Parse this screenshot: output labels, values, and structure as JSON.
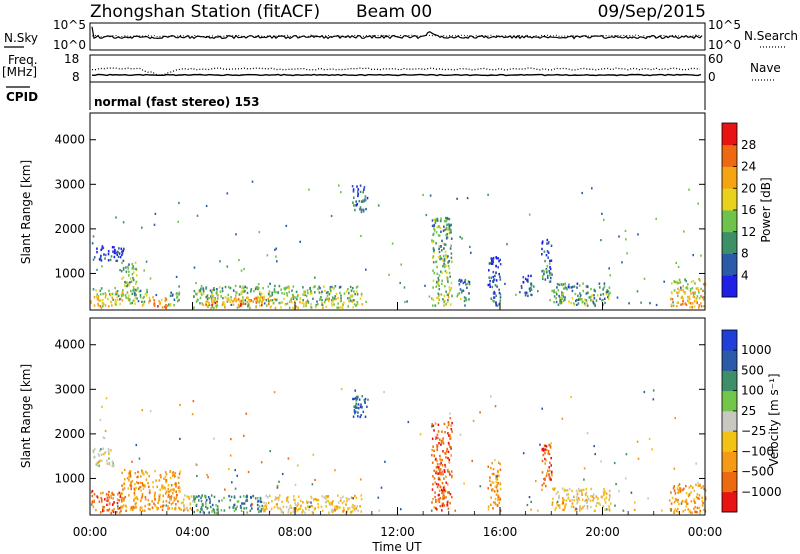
{
  "header": {
    "station": "Zhongshan Station (fitACF)",
    "beam": "Beam 00",
    "date": "09/Sep/2015"
  },
  "top_panels": {
    "nsky_label": "N.Sky",
    "nsky_ticks": [
      "10^5",
      "10^0"
    ],
    "nsearch_label": "N.Search",
    "nsearch_ticks": [
      "10^5",
      "10^0"
    ],
    "freq_label": "Freq.",
    "freq_unit": "[MHz]",
    "freq_ticks": [
      "18",
      "8"
    ],
    "nave_label": "Nave",
    "nave_ticks": [
      "60",
      "0"
    ],
    "cpid_label": "CPID",
    "cpid_text": "normal (fast stereo) 153"
  },
  "colors": {
    "power": [
      "#1f1fe6",
      "#2b5aa8",
      "#3d8f67",
      "#6fc24a",
      "#e9d21e",
      "#f5a514",
      "#ee6a12",
      "#e81313"
    ],
    "velocity": [
      "#1f3fd6",
      "#2b5aa8",
      "#3d8f67",
      "#72c64a",
      "#c8c8c0",
      "#f2c214",
      "#f59a14",
      "#ee6a12",
      "#e81313"
    ]
  },
  "chart_data": [
    {
      "type": "heatmap",
      "name": "power",
      "xlabel": "",
      "ylabel": "Slant Range [km]",
      "ylim": [
        180,
        4600
      ],
      "xlim": [
        0,
        24
      ],
      "yticks": [
        "1000",
        "2000",
        "3000",
        "4000"
      ],
      "colorbar": {
        "label": "Power [dB]",
        "ticks": [
          "4",
          "8",
          "12",
          "16",
          "20",
          "24",
          "28"
        ],
        "range": [
          0,
          32
        ]
      },
      "regions": [
        {
          "t0": 0.0,
          "t1": 1.2,
          "r0": 250,
          "r1": 700,
          "level": 20
        },
        {
          "t0": 0.1,
          "t1": 1.3,
          "r0": 1300,
          "r1": 1650,
          "level": 6
        },
        {
          "t0": 1.2,
          "t1": 1.8,
          "r0": 400,
          "r1": 1300,
          "level": 18
        },
        {
          "t0": 1.5,
          "t1": 2.2,
          "r0": 300,
          "r1": 700,
          "level": 16
        },
        {
          "t0": 2.2,
          "t1": 3.0,
          "r0": 250,
          "r1": 500,
          "level": 26
        },
        {
          "t0": 3.0,
          "t1": 3.5,
          "r0": 300,
          "r1": 650,
          "level": 14
        },
        {
          "t0": 4.0,
          "t1": 10.6,
          "r0": 250,
          "r1": 750,
          "level": 18
        },
        {
          "t0": 4.5,
          "t1": 7.0,
          "r0": 300,
          "r1": 500,
          "level": 26
        },
        {
          "t0": 10.2,
          "t1": 10.8,
          "r0": 2400,
          "r1": 3000,
          "level": 10
        },
        {
          "t0": 13.3,
          "t1": 14.1,
          "r0": 300,
          "r1": 2300,
          "level": 16
        },
        {
          "t0": 14.3,
          "t1": 14.8,
          "r0": 400,
          "r1": 900,
          "level": 12
        },
        {
          "t0": 15.5,
          "t1": 16.0,
          "r0": 300,
          "r1": 1400,
          "level": 8
        },
        {
          "t0": 16.8,
          "t1": 17.3,
          "r0": 500,
          "r1": 1000,
          "level": 8
        },
        {
          "t0": 17.6,
          "t1": 18.0,
          "r0": 800,
          "r1": 1800,
          "level": 10
        },
        {
          "t0": 18.0,
          "t1": 20.3,
          "r0": 300,
          "r1": 800,
          "level": 14
        },
        {
          "t0": 22.6,
          "t1": 24.0,
          "r0": 250,
          "r1": 900,
          "level": 22
        }
      ]
    },
    {
      "type": "heatmap",
      "name": "velocity",
      "xlabel": "Time UT",
      "ylabel": "Slant Range [km]",
      "ylim": [
        180,
        4600
      ],
      "xlim": [
        0,
        24
      ],
      "xticks": [
        "00:00",
        "04:00",
        "08:00",
        "12:00",
        "16:00",
        "20:00",
        "00:00"
      ],
      "yticks": [
        "1000",
        "2000",
        "3000",
        "4000"
      ],
      "colorbar": {
        "label": "Velocity [m s⁻¹]",
        "ticks": [
          "1000",
          "500",
          "100",
          "25",
          "−25",
          "−100",
          "−500",
          "−1000"
        ]
      },
      "regions": [
        {
          "t0": 0.0,
          "t1": 1.2,
          "r0": 250,
          "r1": 750,
          "level": 7
        },
        {
          "t0": 0.1,
          "t1": 0.9,
          "r0": 1300,
          "r1": 1700,
          "level": 4
        },
        {
          "t0": 1.2,
          "t1": 3.5,
          "r0": 300,
          "r1": 1200,
          "level": 6
        },
        {
          "t0": 3.5,
          "t1": 4.0,
          "r0": 300,
          "r1": 650,
          "level": 5
        },
        {
          "t0": 4.0,
          "t1": 6.7,
          "r0": 250,
          "r1": 650,
          "level": 2
        },
        {
          "t0": 6.7,
          "t1": 10.6,
          "r0": 250,
          "r1": 650,
          "level": 5
        },
        {
          "t0": 10.2,
          "t1": 10.8,
          "r0": 2400,
          "r1": 3000,
          "level": 1
        },
        {
          "t0": 13.3,
          "t1": 14.1,
          "r0": 300,
          "r1": 2300,
          "level": 7
        },
        {
          "t0": 15.5,
          "t1": 16.0,
          "r0": 300,
          "r1": 1400,
          "level": 6
        },
        {
          "t0": 17.6,
          "t1": 18.0,
          "r0": 800,
          "r1": 1800,
          "level": 7
        },
        {
          "t0": 18.0,
          "t1": 20.3,
          "r0": 300,
          "r1": 800,
          "level": 5
        },
        {
          "t0": 22.6,
          "t1": 24.0,
          "r0": 250,
          "r1": 900,
          "level": 6
        }
      ]
    }
  ]
}
